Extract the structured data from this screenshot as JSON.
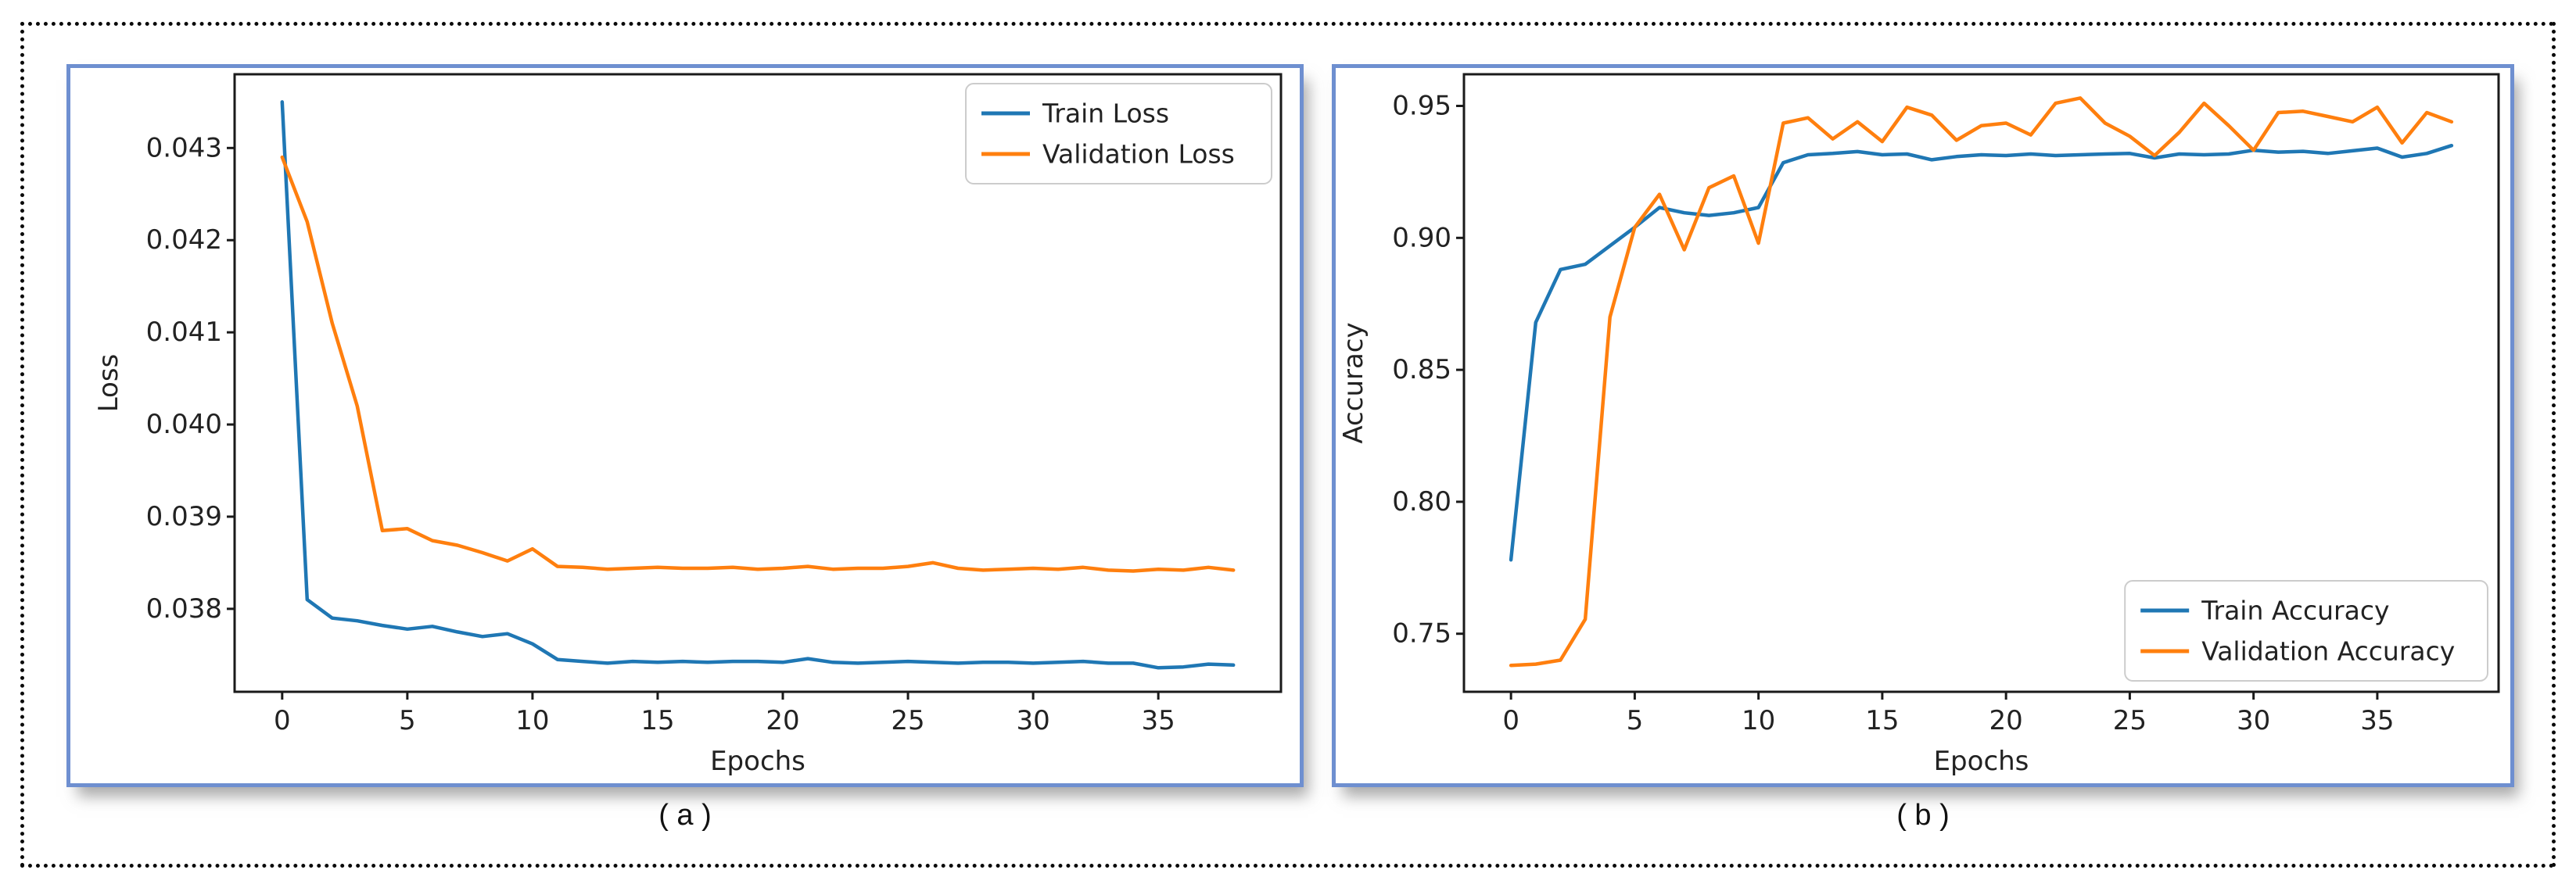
{
  "figure": {
    "captions": {
      "a": "( a )",
      "b": "( b )"
    }
  },
  "colors": {
    "train": "#1f77b4",
    "validation": "#ff7f0e",
    "panel_border": "#6e8fd0",
    "axis": "#1a1a1a",
    "legend_border": "#cccccc"
  },
  "chart_data": [
    {
      "id": "loss",
      "type": "line",
      "title": "",
      "xlabel": "Epochs",
      "ylabel": "Loss",
      "xlim": [
        -1.9,
        39.9
      ],
      "ylim": [
        0.0371,
        0.0438
      ],
      "grid": false,
      "legend_position": "upper right",
      "x_ticks": [
        0,
        5,
        10,
        15,
        20,
        25,
        30,
        35
      ],
      "y_tick_values": [
        0.038,
        0.039,
        0.04,
        0.041,
        0.042,
        0.043
      ],
      "y_tick_labels": [
        "0.038",
        "0.039",
        "0.040",
        "0.041",
        "0.042",
        "0.043"
      ],
      "x": [
        0,
        1,
        2,
        3,
        4,
        5,
        6,
        7,
        8,
        9,
        10,
        11,
        12,
        13,
        14,
        15,
        16,
        17,
        18,
        19,
        20,
        21,
        22,
        23,
        24,
        25,
        26,
        27,
        28,
        29,
        30,
        31,
        32,
        33,
        34,
        35,
        36,
        37,
        38
      ],
      "series": [
        {
          "name": "Train Loss",
          "color": "#1f77b4",
          "values": [
            0.0435,
            0.0381,
            0.0379,
            0.03787,
            0.03782,
            0.03778,
            0.03781,
            0.03775,
            0.0377,
            0.03773,
            0.03762,
            0.03745,
            0.03743,
            0.03741,
            0.03743,
            0.03742,
            0.03743,
            0.03742,
            0.03743,
            0.03743,
            0.03742,
            0.03746,
            0.03742,
            0.03741,
            0.03742,
            0.03743,
            0.03742,
            0.03741,
            0.03742,
            0.03742,
            0.03741,
            0.03742,
            0.03743,
            0.03741,
            0.03741,
            0.03736,
            0.03737,
            0.0374,
            0.03739
          ]
        },
        {
          "name": "Validation Loss",
          "color": "#ff7f0e",
          "values": [
            0.0429,
            0.0422,
            0.0411,
            0.0402,
            0.03885,
            0.03887,
            0.03874,
            0.03869,
            0.03861,
            0.03852,
            0.03865,
            0.03846,
            0.03845,
            0.03843,
            0.03844,
            0.03845,
            0.03844,
            0.03844,
            0.03845,
            0.03843,
            0.03844,
            0.03846,
            0.03843,
            0.03844,
            0.03844,
            0.03846,
            0.0385,
            0.03844,
            0.03842,
            0.03843,
            0.03844,
            0.03843,
            0.03845,
            0.03842,
            0.03841,
            0.03843,
            0.03842,
            0.03845,
            0.03842
          ]
        }
      ]
    },
    {
      "id": "accuracy",
      "type": "line",
      "title": "",
      "xlabel": "Epochs",
      "ylabel": "Accuracy",
      "xlim": [
        -1.9,
        39.9
      ],
      "ylim": [
        0.728,
        0.962
      ],
      "grid": false,
      "legend_position": "lower right",
      "x_ticks": [
        0,
        5,
        10,
        15,
        20,
        25,
        30,
        35
      ],
      "y_tick_values": [
        0.75,
        0.8,
        0.85,
        0.9,
        0.95
      ],
      "y_tick_labels": [
        "0.75",
        "0.80",
        "0.85",
        "0.90",
        "0.95"
      ],
      "x": [
        0,
        1,
        2,
        3,
        4,
        5,
        6,
        7,
        8,
        9,
        10,
        11,
        12,
        13,
        14,
        15,
        16,
        17,
        18,
        19,
        20,
        21,
        22,
        23,
        24,
        25,
        26,
        27,
        28,
        29,
        30,
        31,
        32,
        33,
        34,
        35,
        36,
        37,
        38
      ],
      "series": [
        {
          "name": "Train Accuracy",
          "color": "#1f77b4",
          "values": [
            0.778,
            0.868,
            0.888,
            0.89,
            0.897,
            0.904,
            0.9115,
            0.9095,
            0.9085,
            0.9095,
            0.9115,
            0.9285,
            0.9315,
            0.932,
            0.9327,
            0.9315,
            0.9318,
            0.9296,
            0.9308,
            0.9315,
            0.9312,
            0.9318,
            0.9312,
            0.9315,
            0.9318,
            0.932,
            0.9303,
            0.9318,
            0.9315,
            0.9318,
            0.9332,
            0.9325,
            0.9328,
            0.932,
            0.933,
            0.934,
            0.9306,
            0.932,
            0.935
          ]
        },
        {
          "name": "Validation Accuracy",
          "color": "#ff7f0e",
          "values": [
            0.738,
            0.7385,
            0.74,
            0.7555,
            0.87,
            0.904,
            0.9165,
            0.8955,
            0.919,
            0.9235,
            0.898,
            0.9435,
            0.9455,
            0.9375,
            0.944,
            0.9365,
            0.9495,
            0.9465,
            0.937,
            0.9425,
            0.9435,
            0.939,
            0.951,
            0.953,
            0.9435,
            0.9385,
            0.9312,
            0.94,
            0.951,
            0.9425,
            0.9332,
            0.9475,
            0.948,
            0.946,
            0.944,
            0.9495,
            0.936,
            0.9475,
            0.944
          ]
        }
      ]
    }
  ]
}
